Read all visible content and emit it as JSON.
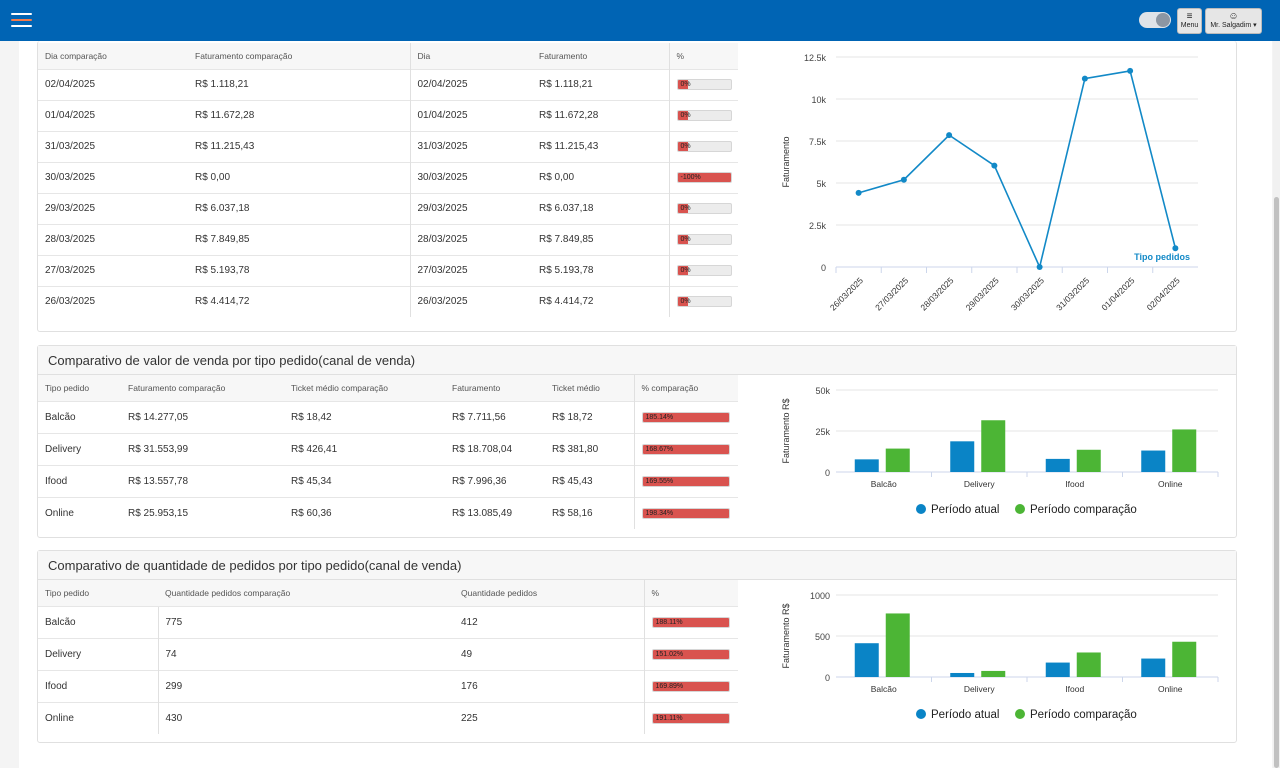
{
  "topbar": {
    "menu_label": "Menu",
    "user_label": "Mr. Salgadim"
  },
  "daily_table": {
    "columns": [
      "Dia comparação",
      "Faturamento comparação",
      "Dia",
      "Faturamento",
      "%"
    ],
    "rows": [
      {
        "cdate": "02/04/2025",
        "cvalue": "R$ 1.118,21",
        "date": "02/04/2025",
        "value": "R$ 1.118,21",
        "pct": "0%",
        "pct_value": 0
      },
      {
        "cdate": "01/04/2025",
        "cvalue": "R$ 11.672,28",
        "date": "01/04/2025",
        "value": "R$ 11.672,28",
        "pct": "0%",
        "pct_value": 0
      },
      {
        "cdate": "31/03/2025",
        "cvalue": "R$ 11.215,43",
        "date": "31/03/2025",
        "value": "R$ 11.215,43",
        "pct": "0%",
        "pct_value": 0
      },
      {
        "cdate": "30/03/2025",
        "cvalue": "R$ 0,00",
        "date": "30/03/2025",
        "value": "R$ 0,00",
        "pct": "-100%",
        "pct_value": 100
      },
      {
        "cdate": "29/03/2025",
        "cvalue": "R$ 6.037,18",
        "date": "29/03/2025",
        "value": "R$ 6.037,18",
        "pct": "0%",
        "pct_value": 0
      },
      {
        "cdate": "28/03/2025",
        "cvalue": "R$ 7.849,85",
        "date": "28/03/2025",
        "value": "R$ 7.849,85",
        "pct": "0%",
        "pct_value": 0
      },
      {
        "cdate": "27/03/2025",
        "cvalue": "R$ 5.193,78",
        "date": "27/03/2025",
        "value": "R$ 5.193,78",
        "pct": "0%",
        "pct_value": 0
      },
      {
        "cdate": "26/03/2025",
        "cvalue": "R$ 4.414,72",
        "date": "26/03/2025",
        "value": "R$ 4.414,72",
        "pct": "0%",
        "pct_value": 0
      }
    ]
  },
  "sales_panel": {
    "title": "Comparativo de valor de venda por tipo pedido(canal de venda)",
    "columns": [
      "Tipo pedido",
      "Faturamento comparação",
      "Ticket médio comparação",
      "Faturamento",
      "Ticket médio",
      "% comparação"
    ],
    "rows": [
      {
        "type": "Balcão",
        "cvalue": "R$ 14.277,05",
        "cticket": "R$ 18,42",
        "value": "R$ 7.711,56",
        "ticket": "R$ 18,72",
        "pct": "185.14%",
        "pct_value": 100
      },
      {
        "type": "Delivery",
        "cvalue": "R$ 31.553,99",
        "cticket": "R$ 426,41",
        "value": "R$ 18.708,04",
        "ticket": "R$ 381,80",
        "pct": "168.67%",
        "pct_value": 100
      },
      {
        "type": "Ifood",
        "cvalue": "R$ 13.557,78",
        "cticket": "R$ 45,34",
        "value": "R$ 7.996,36",
        "ticket": "R$ 45,43",
        "pct": "169.55%",
        "pct_value": 100
      },
      {
        "type": "Online",
        "cvalue": "R$ 25.953,15",
        "cticket": "R$ 60,36",
        "value": "R$ 13.085,49",
        "ticket": "R$ 58,16",
        "pct": "198.34%",
        "pct_value": 100
      }
    ]
  },
  "orders_panel": {
    "title": "Comparativo de quantidade de pedidos por tipo pedido(canal de venda)",
    "columns": [
      "Tipo pedido",
      "Quantidade pedidos comparação",
      "Quantidade pedidos",
      "%"
    ],
    "rows": [
      {
        "type": "Balcão",
        "cqty": "775",
        "qty": "412",
        "pct": "188.11%",
        "pct_value": 100
      },
      {
        "type": "Delivery",
        "cqty": "74",
        "qty": "49",
        "pct": "151.02%",
        "pct_value": 100
      },
      {
        "type": "Ifood",
        "cqty": "299",
        "qty": "176",
        "pct": "169.89%",
        "pct_value": 100
      },
      {
        "type": "Online",
        "cqty": "430",
        "qty": "225",
        "pct": "191.11%",
        "pct_value": 100
      }
    ]
  },
  "colors": {
    "topbar": "#0064b4",
    "line": "#1289c7",
    "atual": "#0a84c6",
    "comparacao": "#4cb535",
    "bar_fill": "#d9534f"
  },
  "chart_data": [
    {
      "type": "line",
      "ylabel": "Faturamento",
      "categories": [
        "26/03/2025",
        "27/03/2025",
        "28/03/2025",
        "29/03/2025",
        "30/03/2025",
        "31/03/2025",
        "01/04/2025",
        "02/04/2025"
      ],
      "series": [
        {
          "name": "Tipo pedidos",
          "values": [
            4414.72,
            5193.78,
            7849.85,
            6037.18,
            0,
            11215.43,
            11672.28,
            1118.21
          ]
        }
      ],
      "yticks": [
        "0",
        "2.5k",
        "5k",
        "7.5k",
        "10k",
        "12.5k"
      ],
      "ylim": [
        0,
        12500
      ],
      "grid": true,
      "legend": "bottom-right"
    },
    {
      "type": "bar",
      "ylabel": "Faturamento R$",
      "categories": [
        "Balcão",
        "Delivery",
        "Ifood",
        "Online"
      ],
      "series": [
        {
          "name": "Período atual",
          "values": [
            7711.56,
            18708.04,
            7996.36,
            13085.49
          ]
        },
        {
          "name": "Período comparação",
          "values": [
            14277.05,
            31553.99,
            13557.78,
            25953.15
          ]
        }
      ],
      "yticks": [
        "0",
        "25k",
        "50k"
      ],
      "ylim": [
        0,
        50000
      ],
      "grid": true,
      "legend": "bottom"
    },
    {
      "type": "bar",
      "ylabel": "Faturamento R$",
      "categories": [
        "Balcão",
        "Delivery",
        "Ifood",
        "Online"
      ],
      "series": [
        {
          "name": "Período atual",
          "values": [
            412,
            49,
            176,
            225
          ]
        },
        {
          "name": "Período comparação",
          "values": [
            775,
            74,
            299,
            430
          ]
        }
      ],
      "yticks": [
        "0",
        "500",
        "1000"
      ],
      "ylim": [
        0,
        1000
      ],
      "grid": true,
      "legend": "bottom"
    }
  ]
}
